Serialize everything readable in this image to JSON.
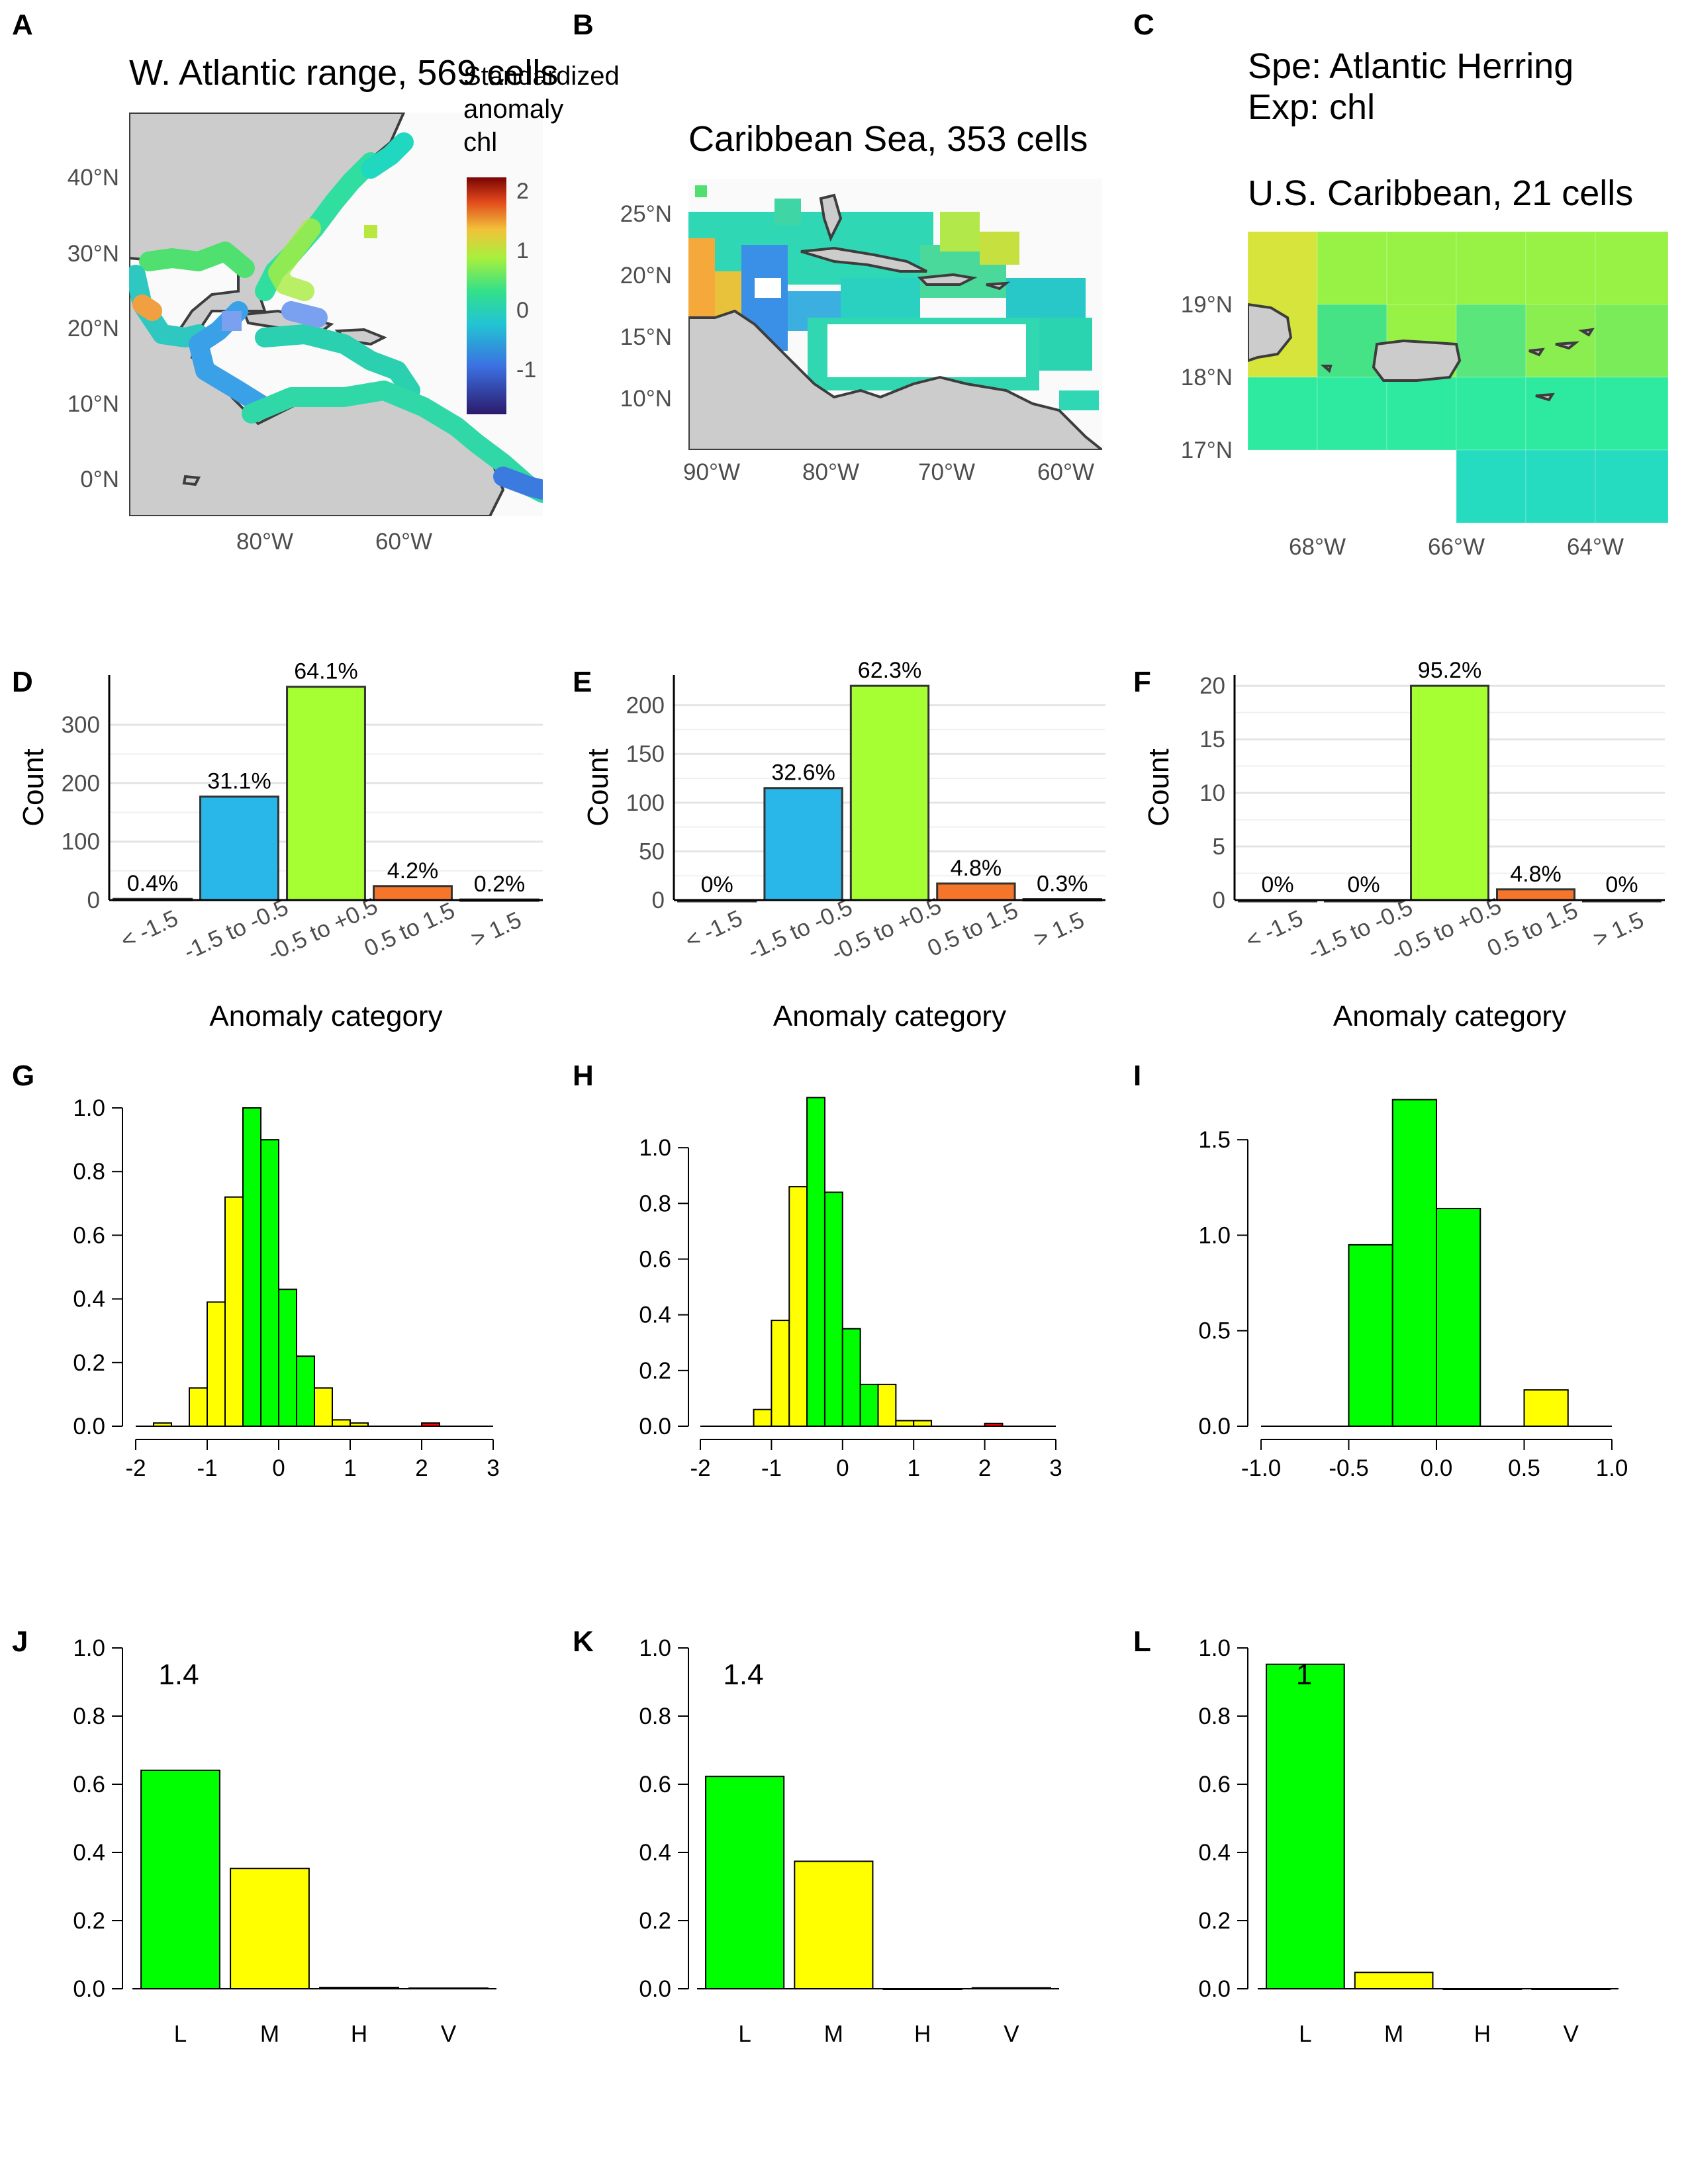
{
  "panel_labels": [
    "A",
    "B",
    "C",
    "D",
    "E",
    "F",
    "G",
    "H",
    "I",
    "J",
    "K",
    "L"
  ],
  "maps": {
    "A": {
      "title": "W. Atlantic range, 569 cells",
      "y_ticks": [
        "40°N",
        "30°N",
        "20°N",
        "10°N",
        "0°N"
      ],
      "x_ticks": [
        "80°W",
        "60°W"
      ]
    },
    "B": {
      "title": "Caribbean Sea, 353 cells",
      "y_ticks": [
        "25°N",
        "20°N",
        "15°N",
        "10°N"
      ],
      "x_ticks": [
        "90°W",
        "80°W",
        "70°W",
        "60°W"
      ]
    },
    "C": {
      "title": "U.S. Caribbean, 21 cells",
      "y_ticks": [
        "19°N",
        "18°N",
        "17°N"
      ],
      "x_ticks": [
        "68°W",
        "66°W",
        "64°W"
      ]
    },
    "legend": {
      "title_lines": [
        "Standardized",
        "anomaly",
        "chl"
      ],
      "ticks": [
        "2",
        "1",
        "0",
        "-1"
      ]
    },
    "species_line": "Spe: Atlantic Herring",
    "exposure_line": "Exp: chl",
    "land_color": "#cccccc",
    "coast_color": "#3d3d3d"
  },
  "chart_data": [
    {
      "panel": "D",
      "type": "bar",
      "title": "",
      "xlabel": "Anomaly category",
      "ylabel": "Count",
      "categories": [
        "< -1.5",
        "-1.5 to -0.5",
        "-0.5 to +0.5",
        "0.5 to 1.5",
        "> 1.5"
      ],
      "values": [
        2,
        177,
        365,
        24,
        1
      ],
      "labels": [
        "0.4%",
        "31.1%",
        "64.1%",
        "4.2%",
        "0.2%"
      ],
      "colors": [
        "#2c7bb6",
        "#29b6e8",
        "#a6ff33",
        "#f5752a",
        "#d7191c"
      ],
      "y_ticks": [
        "0",
        "100",
        "200",
        "300"
      ],
      "ylim": [
        0,
        385
      ],
      "grid": true
    },
    {
      "panel": "E",
      "type": "bar",
      "title": "",
      "xlabel": "Anomaly category",
      "ylabel": "Count",
      "categories": [
        "< -1.5",
        "-1.5 to -0.5",
        "-0.5 to +0.5",
        "0.5 to 1.5",
        "> 1.5"
      ],
      "values": [
        0,
        115,
        220,
        17,
        1
      ],
      "labels": [
        "0%",
        "32.6%",
        "62.3%",
        "4.8%",
        "0.3%"
      ],
      "colors": [
        "#2c7bb6",
        "#29b6e8",
        "#a6ff33",
        "#f5752a",
        "#d7191c"
      ],
      "y_ticks": [
        "0",
        "50",
        "100",
        "150",
        "200"
      ],
      "ylim": [
        0,
        231
      ],
      "grid": true
    },
    {
      "panel": "F",
      "type": "bar",
      "title": "",
      "xlabel": "Anomaly category",
      "ylabel": "Count",
      "categories": [
        "< -1.5",
        "-1.5 to -0.5",
        "-0.5 to +0.5",
        "0.5 to 1.5",
        "> 1.5"
      ],
      "values": [
        0,
        0,
        20,
        1,
        0
      ],
      "labels": [
        "0%",
        "0%",
        "95.2%",
        "4.8%",
        "0%"
      ],
      "colors": [
        "#2c7bb6",
        "#29b6e8",
        "#a6ff33",
        "#f5752a",
        "#d7191c"
      ],
      "y_ticks": [
        "0",
        "5",
        "10",
        "15",
        "20"
      ],
      "ylim": [
        0,
        21
      ],
      "grid": true
    },
    {
      "panel": "G",
      "type": "bar",
      "title": "",
      "bin_edges": [
        -1.75,
        -1.5,
        -1.25,
        -1.0,
        -0.75,
        -0.5,
        -0.25,
        0.0,
        0.25,
        0.5,
        0.75,
        1.0,
        1.25,
        1.5,
        1.75,
        2.0,
        2.25,
        2.5
      ],
      "values": [
        0.01,
        0,
        0.12,
        0.39,
        0.72,
        1.0,
        0.9,
        0.43,
        0.22,
        0.12,
        0.02,
        0.01,
        0,
        0,
        0,
        0.01,
        0
      ],
      "colors": [
        "#ffff00",
        "#ffff00",
        "#ffff00",
        "#ffff00",
        "#ffff00",
        "#00ff00",
        "#00ff00",
        "#00ff00",
        "#00ff00",
        "#ffff00",
        "#ffff00",
        "#ffff00",
        "#ffff00",
        "#ffff00",
        "#ffff00",
        "#ff0000",
        "#ff0000"
      ],
      "x_ticks": [
        "-2",
        "-1",
        "0",
        "1",
        "2",
        "3"
      ],
      "x_tick_values": [
        -2,
        -1,
        0,
        1,
        2,
        3
      ],
      "xlim": [
        -2,
        3
      ],
      "y_ticks": [
        "0.0",
        "0.2",
        "0.4",
        "0.6",
        "0.8",
        "1.0"
      ],
      "y_tick_values": [
        0,
        0.2,
        0.4,
        0.6,
        0.8,
        1.0
      ],
      "ylim": [
        0,
        1.05
      ]
    },
    {
      "panel": "H",
      "type": "bar",
      "title": "",
      "bin_edges": [
        -1.25,
        -1.0,
        -0.75,
        -0.5,
        -0.25,
        0.0,
        0.25,
        0.5,
        0.75,
        1.0,
        1.25,
        1.5,
        1.75,
        2.0,
        2.25
      ],
      "values": [
        0.06,
        0.38,
        0.86,
        1.18,
        0.84,
        0.35,
        0.15,
        0.15,
        0.02,
        0.02,
        0,
        0,
        0,
        0.01
      ],
      "colors": [
        "#ffff00",
        "#ffff00",
        "#ffff00",
        "#00ff00",
        "#00ff00",
        "#00ff00",
        "#00ff00",
        "#ffff00",
        "#ffff00",
        "#ffff00",
        "#ffff00",
        "#ffff00",
        "#ffff00",
        "#ff0000"
      ],
      "x_ticks": [
        "-2",
        "-1",
        "0",
        "1",
        "2",
        "3"
      ],
      "x_tick_values": [
        -2,
        -1,
        0,
        1,
        2,
        3
      ],
      "xlim": [
        -2,
        3
      ],
      "y_ticks": [
        "0.0",
        "0.2",
        "0.4",
        "0.6",
        "0.8",
        "1.0"
      ],
      "y_tick_values": [
        0,
        0.2,
        0.4,
        0.6,
        0.8,
        1.0
      ],
      "ylim": [
        0,
        1.2
      ]
    },
    {
      "panel": "I",
      "type": "bar",
      "title": "",
      "bin_edges": [
        -0.5,
        -0.25,
        0.0,
        0.25,
        0.5,
        0.75
      ],
      "values": [
        0.95,
        1.71,
        1.14,
        0,
        0.19
      ],
      "colors": [
        "#00ff00",
        "#00ff00",
        "#00ff00",
        "#ffff00",
        "#ffff00"
      ],
      "x_ticks": [
        "-1.0",
        "-0.5",
        "0.0",
        "0.5",
        "1.0"
      ],
      "x_tick_values": [
        -1.0,
        -0.5,
        0.0,
        0.5,
        1.0
      ],
      "xlim": [
        -1.0,
        1.0
      ],
      "y_ticks": [
        "0.0",
        "0.5",
        "1.0",
        "1.5"
      ],
      "y_tick_values": [
        0,
        0.5,
        1.0,
        1.5
      ],
      "ylim": [
        0,
        1.75
      ]
    },
    {
      "panel": "J",
      "type": "bar",
      "title": "",
      "annotation": "1.4",
      "categories": [
        "L",
        "M",
        "H",
        "V"
      ],
      "values": [
        0.641,
        0.353,
        0.004,
        0.002
      ],
      "colors": [
        "#00ff00",
        "#ffff00",
        "#ffffff",
        "#ffffff"
      ],
      "y_ticks": [
        "0.0",
        "0.2",
        "0.4",
        "0.6",
        "0.8",
        "1.0"
      ],
      "y_tick_values": [
        0,
        0.2,
        0.4,
        0.6,
        0.8,
        1.0
      ],
      "ylim": [
        0,
        1.0
      ]
    },
    {
      "panel": "K",
      "type": "bar",
      "title": "",
      "annotation": "1.4",
      "categories": [
        "L",
        "M",
        "H",
        "V"
      ],
      "values": [
        0.623,
        0.374,
        0,
        0.003
      ],
      "colors": [
        "#00ff00",
        "#ffff00",
        "#ffffff",
        "#ffffff"
      ],
      "y_ticks": [
        "0.0",
        "0.2",
        "0.4",
        "0.6",
        "0.8",
        "1.0"
      ],
      "y_tick_values": [
        0,
        0.2,
        0.4,
        0.6,
        0.8,
        1.0
      ],
      "ylim": [
        0,
        1.0
      ]
    },
    {
      "panel": "L",
      "type": "bar",
      "title": "",
      "annotation": "1",
      "categories": [
        "L",
        "M",
        "H",
        "V"
      ],
      "values": [
        0.952,
        0.048,
        0,
        0
      ],
      "colors": [
        "#00ff00",
        "#ffff00",
        "#ffffff",
        "#ffffff"
      ],
      "y_ticks": [
        "0.0",
        "0.2",
        "0.4",
        "0.6",
        "0.8",
        "1.0"
      ],
      "y_tick_values": [
        0,
        0.2,
        0.4,
        0.6,
        0.8,
        1.0
      ],
      "ylim": [
        0,
        1.0
      ]
    }
  ]
}
